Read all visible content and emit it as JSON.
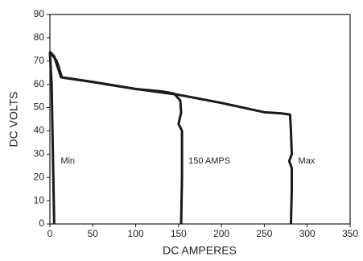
{
  "chart_data": {
    "type": "line",
    "xlabel": "DC AMPERES",
    "ylabel": "DC VOLTS",
    "xlim": [
      0,
      350
    ],
    "xticks": [
      0,
      50,
      100,
      150,
      200,
      250,
      300,
      350
    ],
    "ylim": [
      0,
      90
    ],
    "yticks": [
      0,
      10,
      20,
      30,
      40,
      50,
      60,
      70,
      80,
      90
    ],
    "grid": false,
    "series": [
      {
        "name": "Min",
        "color": "#1a1a1a",
        "x": [
          0,
          2,
          3,
          4,
          5
        ],
        "values": [
          74,
          60,
          40,
          20,
          0
        ]
      },
      {
        "name": "150 AMPS",
        "color": "#1a1a1a",
        "x": [
          0,
          8,
          14,
          50,
          100,
          130,
          145,
          152,
          153,
          150,
          154,
          154,
          153
        ],
        "values": [
          74,
          70,
          63,
          61,
          58,
          57,
          56,
          53,
          48,
          43,
          40,
          20,
          0
        ]
      },
      {
        "name": "Max",
        "color": "#1a1a1a",
        "x": [
          0,
          5,
          13,
          50,
          100,
          130,
          150,
          200,
          250,
          270,
          280,
          281,
          282,
          279,
          282,
          282,
          281
        ],
        "values": [
          74,
          72,
          63,
          61,
          58,
          56.5,
          55.5,
          52,
          48,
          47.5,
          47,
          40,
          30,
          27,
          24,
          15,
          0
        ]
      }
    ]
  }
}
